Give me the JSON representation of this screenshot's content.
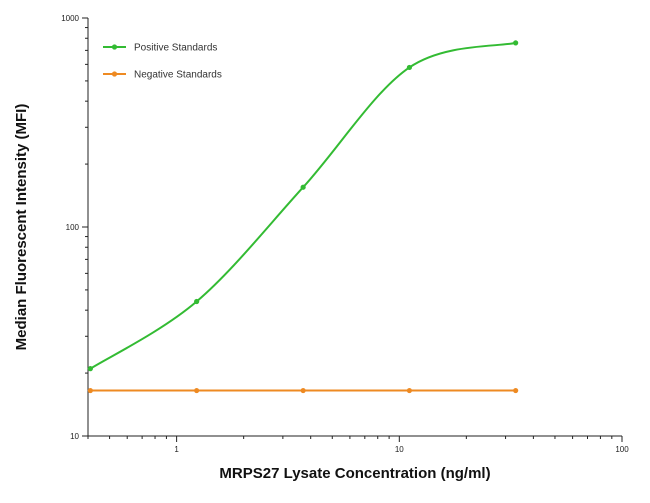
{
  "chart_data": {
    "type": "line",
    "xlabel": "MRPS27 Lysate Concentration (ng/ml)",
    "ylabel": "Median  Fluorescent Intensity  (MFI)",
    "xscale": "log",
    "yscale": "log",
    "xlim": [
      0.4,
      100
    ],
    "ylim": [
      10,
      1000
    ],
    "x_ticks": [
      1,
      10,
      100
    ],
    "x_tick_labels": [
      "1",
      "10",
      "100"
    ],
    "y_ticks": [
      10,
      100,
      1000
    ],
    "y_tick_labels": [
      "10",
      "100",
      "1000"
    ],
    "grid": false,
    "legend_position": "top-left",
    "series": [
      {
        "name": "Positive Standards",
        "color": "#33bb33",
        "x": [
          0.41,
          1.23,
          3.7,
          11.1,
          33.3
        ],
        "y": [
          21,
          44,
          155,
          580,
          760
        ]
      },
      {
        "name": "Negative Standards",
        "color": "#ee8a22",
        "x": [
          0.41,
          1.23,
          3.7,
          11.1,
          33.3
        ],
        "y": [
          16.5,
          16.5,
          16.5,
          16.5,
          16.5
        ]
      }
    ]
  }
}
